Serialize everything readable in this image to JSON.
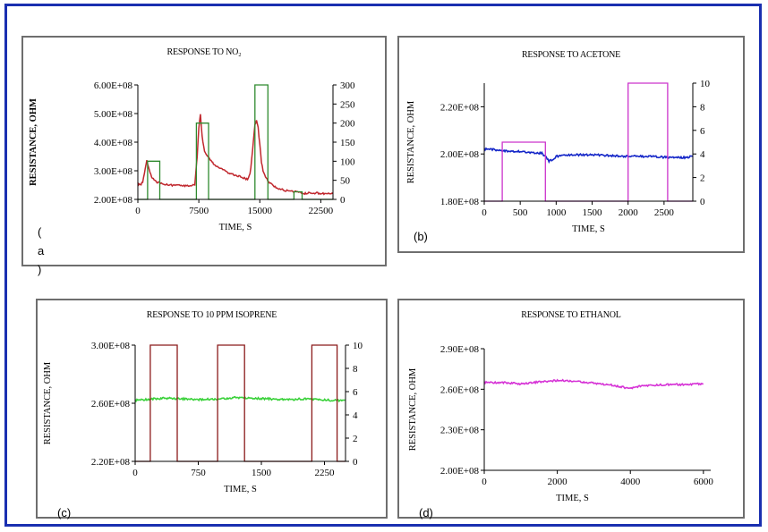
{
  "colors": {
    "frame": "#1a2fb0",
    "panel_border": "#6e6e6e"
  },
  "chart_data": [
    {
      "id": "a",
      "type": "line",
      "panel_label": "(\na\n)",
      "title": "RESPONSE TO NO₂",
      "xlabel": "TIME, S",
      "ylabel": "RESISTANCE, OHM",
      "xlim": [
        0,
        24000
      ],
      "ylim": [
        200000000,
        600000000
      ],
      "y2lim": [
        0,
        300
      ],
      "x_ticks": [
        0,
        7500,
        15000,
        22500
      ],
      "x_tick_labels": [
        "0",
        "7500",
        "15000",
        "22500"
      ],
      "y_ticks": [
        200000000,
        300000000,
        400000000,
        500000000,
        600000000
      ],
      "y_tick_labels": [
        "2.00E+08",
        "3.00E+08",
        "4.00E+08",
        "5.00E+08",
        "6.00E+08"
      ],
      "y2_ticks": [
        0,
        50,
        100,
        150,
        200,
        250,
        300
      ],
      "y2_tick_labels": [
        "0",
        "50",
        "100",
        "150",
        "200",
        "250",
        "300"
      ],
      "series": [
        {
          "color": "#c0272d",
          "axis": "left",
          "x": [
            0,
            300,
            600,
            900,
            1100,
            1300,
            1500,
            1700,
            1900,
            2100,
            2400,
            3000,
            4000,
            5000,
            6000,
            7000,
            7300,
            7500,
            7700,
            7900,
            8200,
            8600,
            9000,
            9500,
            10000,
            11000,
            12000,
            13000,
            13500,
            13800,
            14000,
            14200,
            14400,
            14600,
            14800,
            15000,
            15200,
            15400,
            15800,
            16300,
            17000,
            18000,
            19000,
            20000,
            20500,
            21000,
            22000,
            23000,
            24000
          ],
          "y": [
            255000000.0,
            250000000.0,
            260000000.0,
            305000000.0,
            335000000.0,
            315000000.0,
            295000000.0,
            280000000.0,
            270000000.0,
            265000000.0,
            260000000.0,
            255000000.0,
            250000000.0,
            250000000.0,
            247000000.0,
            250000000.0,
            350000000.0,
            450000000.0,
            500000000.0,
            420000000.0,
            370000000.0,
            350000000.0,
            335000000.0,
            320000000.0,
            310000000.0,
            295000000.0,
            285000000.0,
            275000000.0,
            270000000.0,
            290000000.0,
            340000000.0,
            400000000.0,
            460000000.0,
            475000000.0,
            450000000.0,
            390000000.0,
            330000000.0,
            300000000.0,
            272000000.0,
            255000000.0,
            242000000.0,
            232000000.0,
            227000000.0,
            225000000.0,
            220000000.0,
            223000000.0,
            222000000.0,
            220000000.0,
            220000000.0
          ]
        },
        {
          "color": "#2f8a2f",
          "axis": "right",
          "x": [
            0,
            1200,
            1200,
            2700,
            2700,
            7200,
            7200,
            8700,
            8700,
            14400,
            14400,
            16000,
            16000,
            19200,
            19200,
            20200,
            20200,
            24000
          ],
          "y": [
            0,
            0,
            100,
            100,
            0,
            0,
            200,
            200,
            0,
            0,
            300,
            300,
            0,
            0,
            20,
            20,
            0,
            0
          ]
        }
      ]
    },
    {
      "id": "b",
      "type": "line",
      "panel_label": "(b)",
      "title": "RESPONSE TO ACETONE",
      "xlabel": "TIME, S",
      "ylabel": "RESISTANCE, OHM",
      "xlim": [
        0,
        2900
      ],
      "ylim": [
        180000000,
        230000000
      ],
      "y2lim": [
        0,
        10
      ],
      "x_ticks": [
        0,
        500,
        1000,
        1500,
        2000,
        2500
      ],
      "x_tick_labels": [
        "0",
        "500",
        "1000",
        "1500",
        "2000",
        "2500"
      ],
      "y_ticks": [
        180000000,
        200000000,
        220000000
      ],
      "y_tick_labels": [
        "1.80E+08",
        "2.00E+08",
        "2.20E+08"
      ],
      "y2_ticks": [
        0,
        2,
        4,
        6,
        8,
        10
      ],
      "y2_tick_labels": [
        "0",
        "2",
        "4",
        "6",
        "8",
        "10"
      ],
      "series": [
        {
          "color": "#1426c8",
          "axis": "left",
          "x": [
            0,
            100,
            200,
            300,
            400,
            500,
            600,
            700,
            800,
            850,
            900,
            950,
            1000,
            1100,
            1200,
            1400,
            1600,
            1800,
            2000,
            2200,
            2400,
            2600,
            2800,
            2900
          ],
          "y": [
            202000000.0,
            202000000.0,
            201500000.0,
            201300000.0,
            201000000.0,
            201000000.0,
            200800000.0,
            200500000.0,
            200300000.0,
            199000000.0,
            197000000.0,
            197500000.0,
            199000000.0,
            199500000.0,
            199600000.0,
            199700000.0,
            199500000.0,
            199300000.0,
            199000000.0,
            199000000.0,
            198800000.0,
            198500000.0,
            198500000.0,
            199000000.0
          ]
        },
        {
          "color": "#cc33cc",
          "axis": "right",
          "x": [
            0,
            250,
            250,
            850,
            850,
            2000,
            2000,
            2550,
            2550,
            2900
          ],
          "y": [
            0,
            0,
            5,
            5,
            0,
            0,
            10,
            10,
            0,
            0
          ]
        }
      ]
    },
    {
      "id": "c",
      "type": "line",
      "panel_label": "(c)",
      "title": "RESPONSE TO 10 PPM ISOPRENE",
      "xlabel": "TIME, S",
      "ylabel": "RESISTANCE, OHM",
      "xlim": [
        0,
        2500
      ],
      "ylim": [
        220000000,
        300000000
      ],
      "y2lim": [
        0,
        10
      ],
      "x_ticks": [
        0,
        750,
        1500,
        2250
      ],
      "x_tick_labels": [
        "0",
        "750",
        "1500",
        "2250"
      ],
      "y_ticks": [
        220000000,
        260000000,
        300000000
      ],
      "y_tick_labels": [
        "2.20E+08",
        "2.60E+08",
        "3.00E+08"
      ],
      "y2_ticks": [
        0,
        2,
        4,
        6,
        8,
        10
      ],
      "y2_tick_labels": [
        "0",
        "2",
        "4",
        "6",
        "8",
        "10"
      ],
      "series": [
        {
          "color": "#3ad13a",
          "axis": "left",
          "x": [
            0,
            200,
            400,
            600,
            800,
            1000,
            1200,
            1400,
            1600,
            1800,
            2000,
            2200,
            2400,
            2500
          ],
          "y": [
            262000000.0,
            263000000.0,
            263500000.0,
            263000000.0,
            262500000.0,
            263000000.0,
            264000000.0,
            263500000.0,
            263000000.0,
            262500000.0,
            263000000.0,
            262500000.0,
            262000000.0,
            262000000.0
          ]
        },
        {
          "color": "#8b1a1a",
          "axis": "right",
          "x": [
            0,
            180,
            180,
            500,
            500,
            980,
            980,
            1300,
            1300,
            2100,
            2100,
            2400,
            2400,
            2500
          ],
          "y": [
            0,
            0,
            10,
            10,
            0,
            0,
            10,
            10,
            0,
            0,
            10,
            10,
            0,
            0
          ]
        }
      ]
    },
    {
      "id": "d",
      "type": "line",
      "panel_label": "(d)",
      "title": "RESPONSE TO ETHANOL",
      "xlabel": "TIME, S",
      "ylabel": "RESISTANCE, OHM",
      "xlim": [
        0,
        6200
      ],
      "ylim": [
        200000000,
        290000000
      ],
      "x_ticks": [
        0,
        2000,
        4000,
        6000
      ],
      "x_tick_labels": [
        "0",
        "2000",
        "4000",
        "6000"
      ],
      "y_ticks": [
        200000000,
        230000000,
        260000000,
        290000000
      ],
      "y_tick_labels": [
        "2.00E+08",
        "2.30E+08",
        "2.60E+08",
        "2.90E+08"
      ],
      "series": [
        {
          "color": "#d633d6",
          "axis": "left",
          "x": [
            0,
            500,
            1000,
            1500,
            2000,
            2500,
            3000,
            3500,
            3800,
            4000,
            4200,
            4600,
            5000,
            5500,
            6000
          ],
          "y": [
            265000000.0,
            265000000.0,
            264000000.0,
            265500000.0,
            266500000.0,
            266000000.0,
            264500000.0,
            263000000.0,
            261500000.0,
            260500000.0,
            262000000.0,
            263000000.0,
            263500000.0,
            263500000.0,
            264000000.0
          ]
        }
      ]
    }
  ]
}
